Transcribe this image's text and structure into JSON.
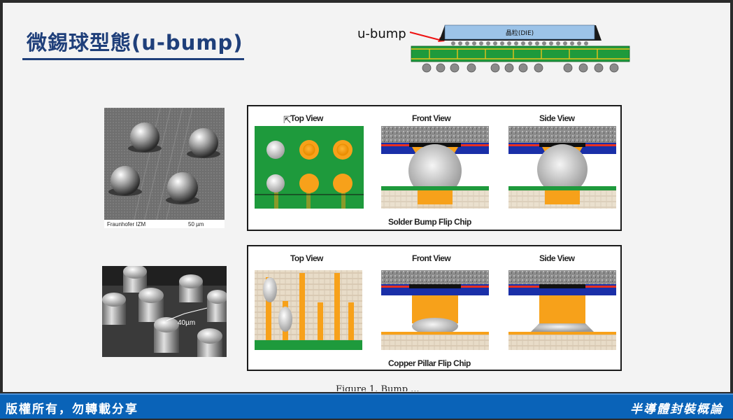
{
  "slide": {
    "title": "微錫球型態(u-bump)",
    "ubump_label": "u-bump",
    "die_label": "晶粒(DIE)"
  },
  "sem_top": {
    "credit": "Fraunhofer IZM",
    "scale": "50 µm"
  },
  "sem_bottom": {
    "scale": "40µm"
  },
  "panel_solder": {
    "views": [
      "Top View",
      "Front View",
      "Side View"
    ],
    "caption": "Solder Bump Flip Chip"
  },
  "panel_copper": {
    "views": [
      "Top View",
      "Front View",
      "Side View"
    ],
    "caption": "Copper Pillar Flip Chip"
  },
  "figure_caption_partial": "Figure 1. Bump ...",
  "footer": {
    "left": "版權所有，勿轉載分享",
    "right": "半導體封裝概論"
  },
  "colors": {
    "title_blue": "#1f3f7a",
    "footer_blue": "#0a63b8",
    "pcb_green": "#1e9a3c",
    "copper_orange": "#f7a11a",
    "die_blue": "#9cc3e8"
  }
}
